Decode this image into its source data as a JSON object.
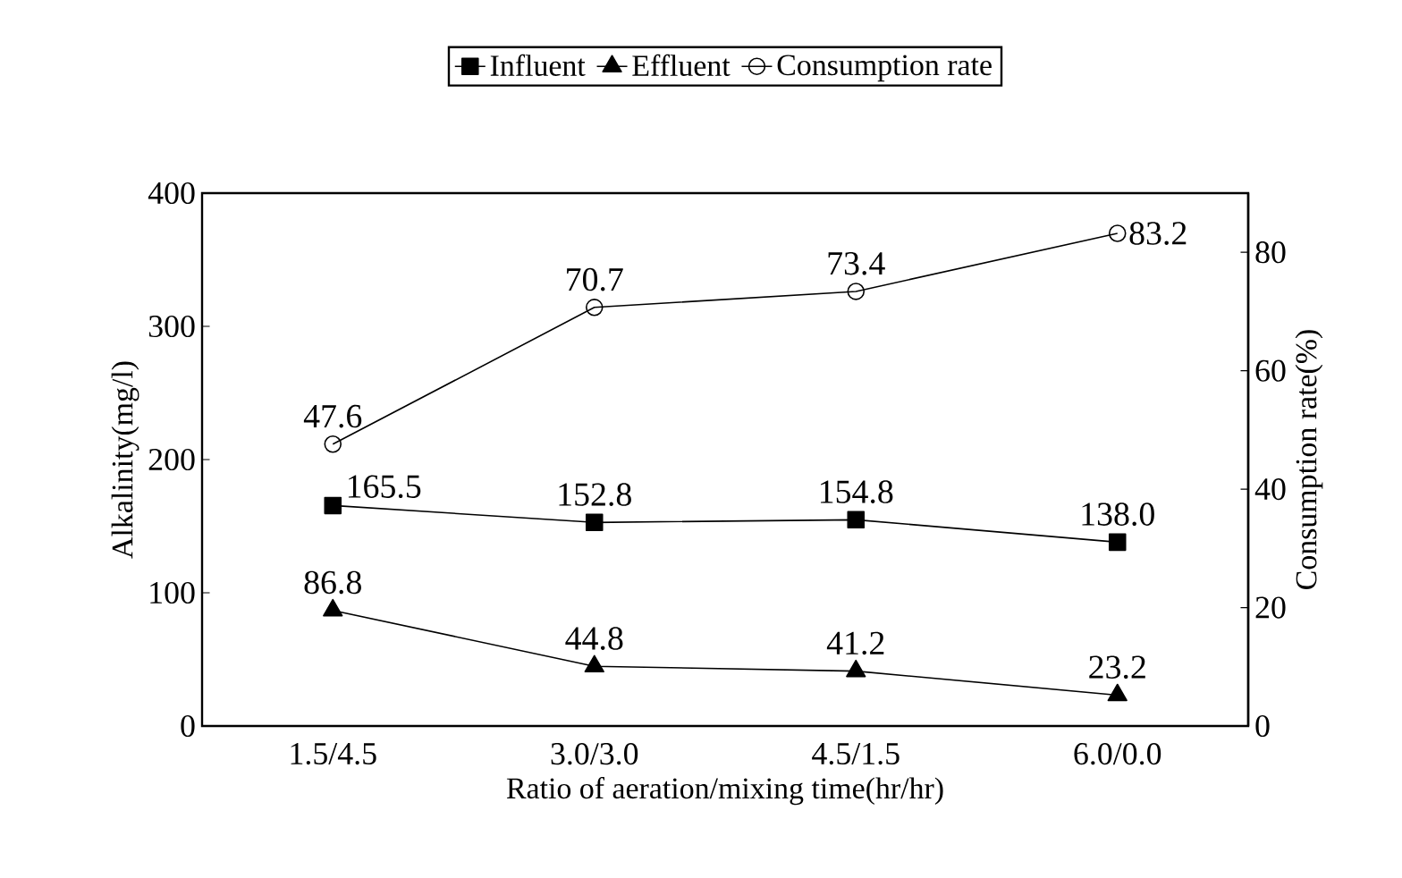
{
  "chart_data": {
    "type": "line",
    "xlabel": "Ratio of aeration/mixing time(hr/hr)",
    "ylabel": "Alkalinity(mg/l)",
    "y2label": "Consumption rate(%)",
    "categories": [
      "1.5/4.5",
      "3.0/3.0",
      "4.5/1.5",
      "6.0/0.0"
    ],
    "series": [
      {
        "name": "Influent",
        "color": "#000000",
        "marker": "square",
        "values": [
          165.5,
          152.8,
          154.8,
          138.0
        ],
        "value_labels": [
          "165.5",
          "152.8",
          "154.8",
          "138.0"
        ]
      },
      {
        "name": "Effluent",
        "color": "#000000",
        "marker": "triangle",
        "values": [
          86.8,
          44.8,
          41.2,
          23.2
        ],
        "value_labels": [
          "86.8",
          "44.8",
          "41.2",
          "23.2"
        ]
      },
      {
        "name": "Consumption rate",
        "color": "#000000",
        "marker": "circle",
        "axis": "y2",
        "values": [
          47.6,
          70.7,
          73.4,
          83.2
        ],
        "value_labels": [
          "47.6",
          "70.7",
          "73.4",
          "83.2"
        ]
      }
    ],
    "ylim": [
      0,
      400
    ],
    "yticks": [
      0,
      100,
      200,
      300,
      400
    ],
    "y2lim": [
      0,
      90
    ],
    "y2ticks": [
      0,
      20,
      40,
      60,
      80
    ],
    "legend": "top",
    "grid": false
  }
}
